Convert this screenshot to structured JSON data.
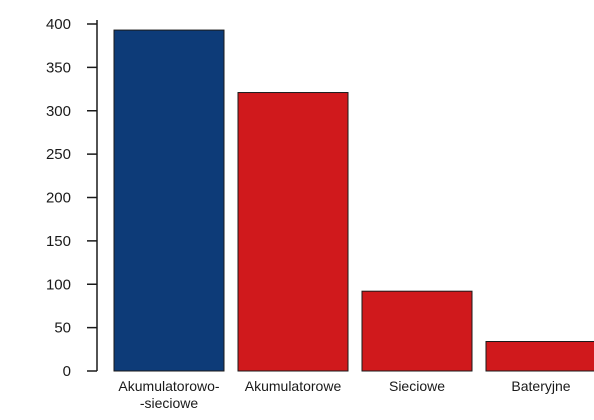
{
  "chart_data": {
    "type": "bar",
    "title": "",
    "xlabel": "",
    "ylabel": "",
    "categories": [
      "Akumulatorowo-\n-sieciowe",
      "Akumulatorowe",
      "Sieciowe",
      "Bateryjne"
    ],
    "values": [
      393,
      321,
      92,
      34
    ],
    "bar_colors": [
      "#0d3b78",
      "#d0191c",
      "#d0191c",
      "#d0191c"
    ],
    "ylim": [
      0,
      400
    ],
    "yticks": [
      0,
      50,
      100,
      150,
      200,
      250,
      300,
      350,
      400
    ],
    "grid": false,
    "legend": "none"
  }
}
